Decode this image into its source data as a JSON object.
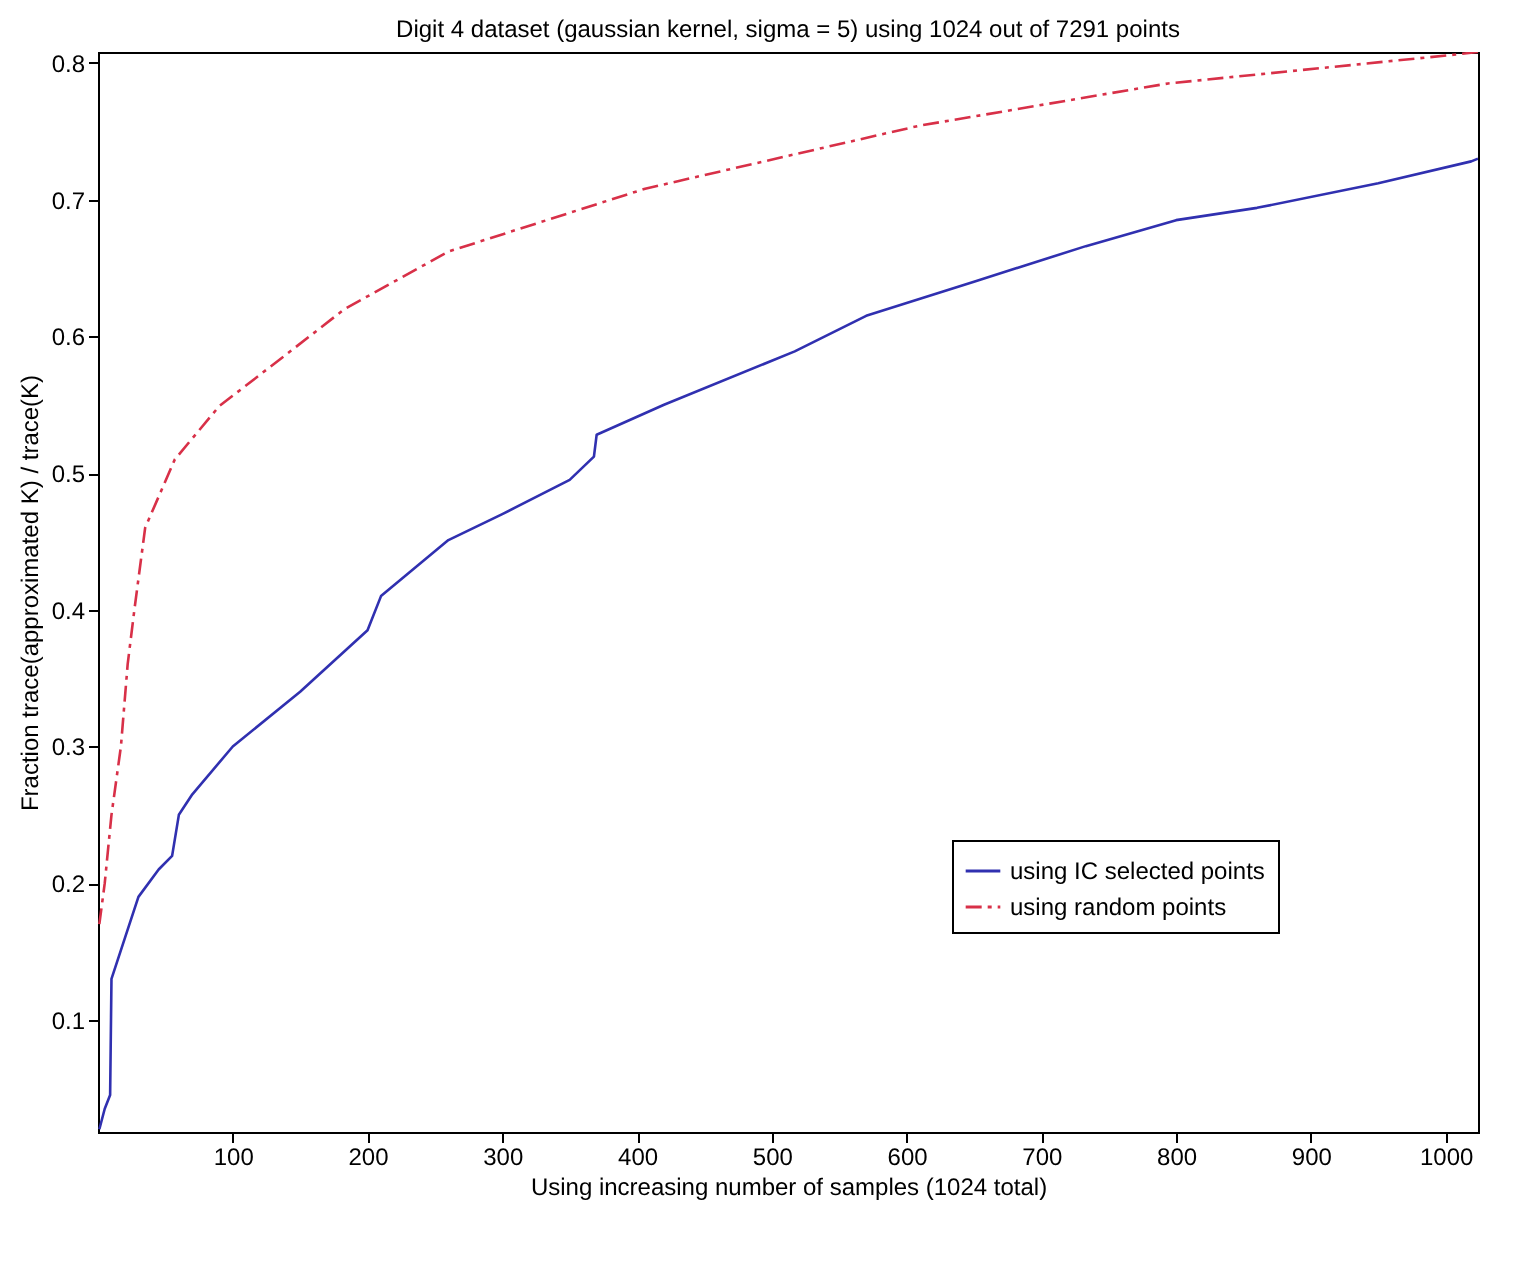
{
  "chart_data": {
    "type": "line",
    "title": "Digit 4 dataset (gaussian kernel, sigma = 5) using 1024 out of 7291 points",
    "xlabel": "Using increasing number of samples (1024 total)",
    "ylabel": "Fraction trace(approximated K) / trace(K)",
    "xlim": [
      0,
      1024
    ],
    "ylim": [
      0.018,
      0.808
    ],
    "xticks": [
      100,
      200,
      300,
      400,
      500,
      600,
      700,
      800,
      900,
      1000
    ],
    "yticks": [
      0.1,
      0.2,
      0.3,
      0.4,
      0.5,
      0.6,
      0.7,
      0.8
    ],
    "grid": false,
    "legend": "bottom right",
    "marker": "none",
    "series": [
      {
        "name": "using IC selected points",
        "color": "#3030b0",
        "line_style": "solid",
        "x": [
          1,
          5,
          9,
          10,
          20,
          30,
          45,
          55,
          60,
          70,
          100,
          150,
          200,
          210,
          260,
          300,
          350,
          368,
          370,
          420,
          517,
          570,
          650,
          733,
          800,
          860,
          950,
          1019,
          1024
        ],
        "values": [
          0.02,
          0.035,
          0.045,
          0.13,
          0.16,
          0.19,
          0.21,
          0.22,
          0.25,
          0.265,
          0.3,
          0.34,
          0.385,
          0.41,
          0.451,
          0.47,
          0.495,
          0.512,
          0.528,
          0.55,
          0.589,
          0.615,
          0.64,
          0.666,
          0.685,
          0.694,
          0.712,
          0.728,
          0.73
        ]
      },
      {
        "name": "using random points",
        "color": "#d83048",
        "line_style": "dashed",
        "x": [
          1,
          5,
          10,
          17,
          22,
          27,
          35,
          57,
          90,
          140,
          183,
          260,
          406,
          609,
          794,
          1006,
          1024
        ],
        "values": [
          0.17,
          0.2,
          0.25,
          0.3,
          0.36,
          0.4,
          0.46,
          0.51,
          0.549,
          0.587,
          0.62,
          0.662,
          0.708,
          0.754,
          0.785,
          0.806,
          0.808
        ]
      }
    ]
  }
}
